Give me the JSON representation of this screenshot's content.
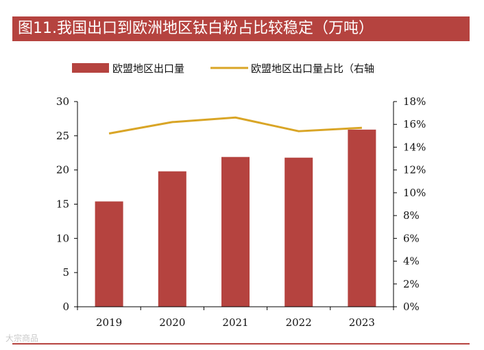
{
  "title": "图11.我国出口到欧洲地区钛白粉占比较稳定（万吨）",
  "watermark": "大宗商品",
  "colors": {
    "bar": "#b5433f",
    "line": "#d9a526",
    "accent": "#b5433f",
    "axis": "#000000"
  },
  "chart_data": {
    "type": "bar",
    "title": "图11.我国出口到欧洲地区钛白粉占比较稳定（万吨）",
    "categories": [
      "2019",
      "2020",
      "2021",
      "2022",
      "2023"
    ],
    "series": [
      {
        "name": "欧盟地区出口量",
        "type": "bar",
        "axis": "left",
        "values": [
          15.4,
          19.8,
          21.9,
          21.8,
          25.9
        ]
      },
      {
        "name": "欧盟地区出口量占比（右轴",
        "type": "line",
        "axis": "right",
        "values": [
          15.2,
          16.2,
          16.6,
          15.4,
          15.7
        ]
      }
    ],
    "y_left": {
      "min": 0,
      "max": 30,
      "step": 5,
      "ticks": [
        "0",
        "5",
        "10",
        "15",
        "20",
        "25",
        "30"
      ]
    },
    "y_right": {
      "min": 0,
      "max": 18,
      "step": 2,
      "unit": "%",
      "ticks": [
        "0%",
        "2%",
        "4%",
        "6%",
        "8%",
        "10%",
        "12%",
        "14%",
        "16%",
        "18%"
      ]
    },
    "legend_position": "top-center",
    "grid": false
  }
}
